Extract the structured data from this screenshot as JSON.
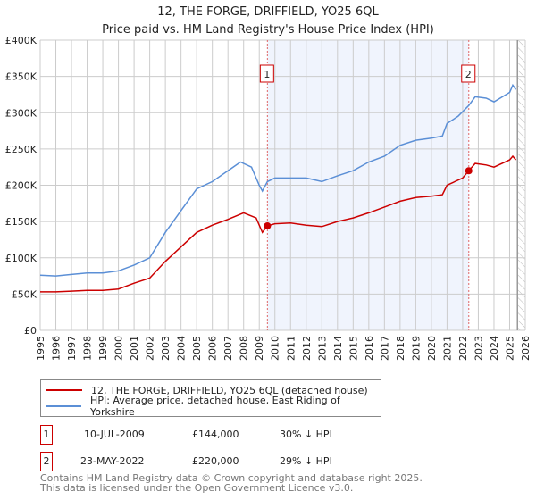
{
  "chart_data": {
    "type": "line",
    "title": "12, THE FORGE, DRIFFIELD, YO25 6QL",
    "subtitle": "Price paid vs. HM Land Registry's House Price Index (HPI)",
    "xlim": [
      1995,
      2026
    ],
    "ylim": [
      0,
      400000
    ],
    "x_ticks": [
      "1995",
      "1996",
      "1997",
      "1998",
      "1999",
      "2000",
      "2001",
      "2002",
      "2003",
      "2004",
      "2005",
      "2006",
      "2007",
      "2008",
      "2009",
      "2010",
      "2011",
      "2012",
      "2013",
      "2014",
      "2015",
      "2016",
      "2017",
      "2018",
      "2019",
      "2020",
      "2021",
      "2022",
      "2023",
      "2024",
      "2025",
      "2026"
    ],
    "y_ticks": [
      {
        "v": 0,
        "label": "£0"
      },
      {
        "v": 50000,
        "label": "£50K"
      },
      {
        "v": 100000,
        "label": "£100K"
      },
      {
        "v": 150000,
        "label": "£150K"
      },
      {
        "v": 200000,
        "label": "£200K"
      },
      {
        "v": 250000,
        "label": "£250K"
      },
      {
        "v": 300000,
        "label": "£300K"
      },
      {
        "v": 350000,
        "label": "£350K"
      },
      {
        "v": 400000,
        "label": "£400K"
      }
    ],
    "grid": true,
    "legend_placement": "bottom",
    "shaded_range": [
      2009.52,
      2022.39
    ],
    "forecast_hatch_from": 2025.5,
    "series": [
      {
        "name": "12, THE FORGE, DRIFFIELD, YO25 6QL (detached house)",
        "color": "#cc0000",
        "x": [
          1995,
          1996,
          1997,
          1998,
          1999,
          2000,
          2001,
          2002,
          2003,
          2004,
          2005,
          2006,
          2007,
          2008,
          2008.8,
          2009.2,
          2009.52,
          2010,
          2011,
          2012,
          2013,
          2014,
          2015,
          2016,
          2017,
          2018,
          2019,
          2020,
          2020.7,
          2021,
          2022,
          2022.39,
          2022.8,
          2023.5,
          2024,
          2025,
          2025.2,
          2025.4
        ],
        "y": [
          53000,
          53000,
          54000,
          55000,
          55000,
          57000,
          65000,
          72000,
          95000,
          115000,
          135000,
          145000,
          153000,
          162000,
          155000,
          135000,
          144000,
          147000,
          148000,
          145000,
          143000,
          150000,
          155000,
          162000,
          170000,
          178000,
          183000,
          185000,
          187000,
          200000,
          210000,
          220000,
          230000,
          228000,
          225000,
          235000,
          240000,
          235000
        ]
      },
      {
        "name": "HPI: Average price, detached house, East Riding of Yorkshire",
        "color": "#5b8fd6",
        "x": [
          1995,
          1996,
          1997,
          1998,
          1999,
          2000,
          2001,
          2002,
          2003,
          2004,
          2005,
          2006,
          2007,
          2007.8,
          2008.5,
          2009.0,
          2009.2,
          2009.52,
          2010,
          2011,
          2012,
          2013,
          2014,
          2015,
          2016,
          2017,
          2018,
          2019,
          2020,
          2020.7,
          2021,
          2021.7,
          2022.39,
          2022.8,
          2023.5,
          2024,
          2025,
          2025.2,
          2025.4
        ],
        "y": [
          76000,
          75000,
          77000,
          79000,
          79000,
          82000,
          90000,
          100000,
          135000,
          165000,
          195000,
          205000,
          220000,
          232000,
          225000,
          200000,
          192000,
          205000,
          210000,
          210000,
          210000,
          205000,
          213000,
          220000,
          232000,
          240000,
          255000,
          262000,
          265000,
          268000,
          285000,
          295000,
          310000,
          322000,
          320000,
          315000,
          328000,
          338000,
          332000
        ]
      }
    ],
    "sales": [
      {
        "id": "1",
        "x": 2009.52,
        "y": 144000,
        "date": "10-JUL-2009",
        "price": "£144,000",
        "hpi_diff": "30% ↓ HPI"
      },
      {
        "id": "2",
        "x": 2022.39,
        "y": 220000,
        "date": "23-MAY-2022",
        "price": "£220,000",
        "hpi_diff": "29% ↓ HPI"
      }
    ]
  },
  "footer": {
    "line1": "Contains HM Land Registry data © Crown copyright and database right 2025.",
    "line2": "This data is licensed under the Open Government Licence v3.0."
  }
}
